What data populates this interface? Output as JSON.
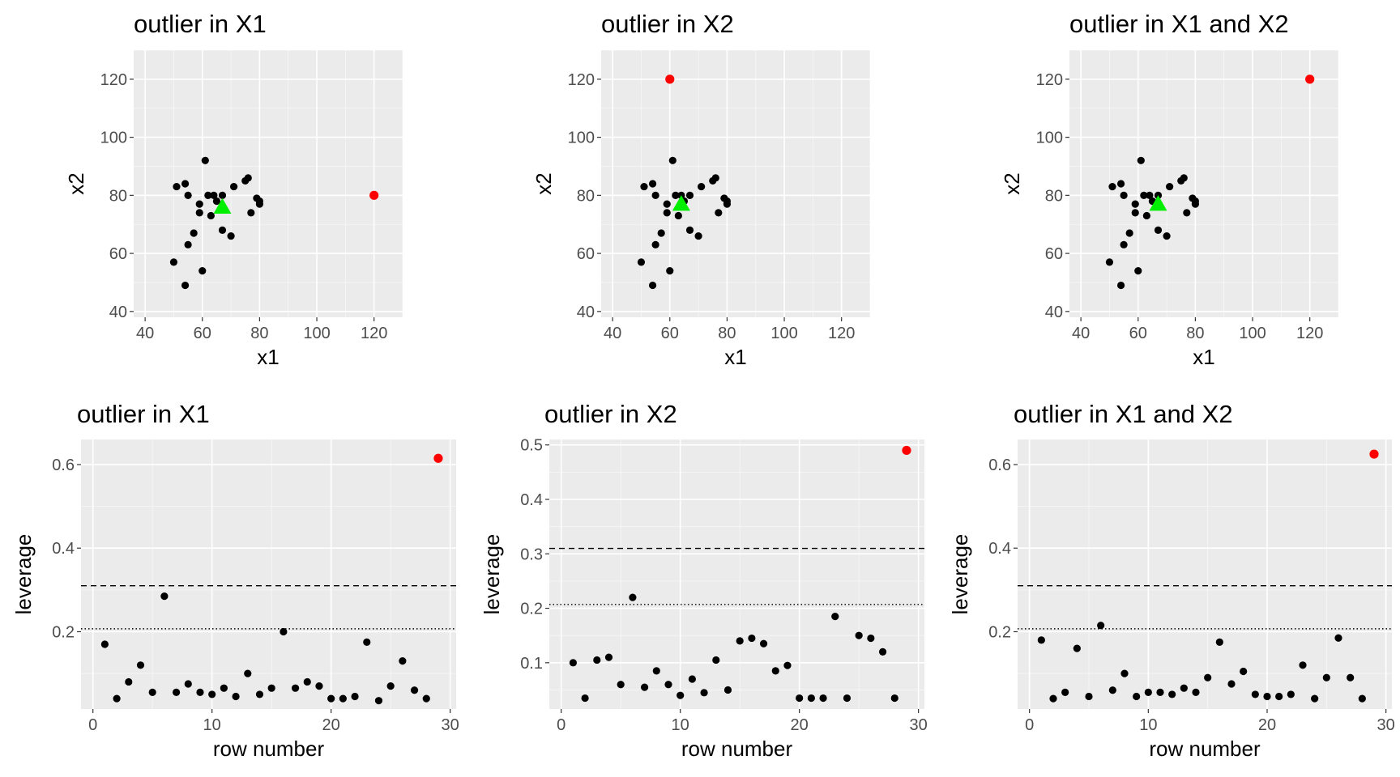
{
  "colors": {
    "panel_bg": "#ebebeb",
    "grid_major": "#ffffff",
    "point": "#000000",
    "outlier": "#ff0000",
    "centroid": "#00ee00",
    "reference_line": "#000000"
  },
  "chart_data": [
    {
      "type": "scatter",
      "title": "outlier in X1",
      "xlabel": "x1",
      "ylabel": "x2",
      "xlim": [
        36,
        130
      ],
      "ylim": [
        38,
        130
      ],
      "xticks": [
        40,
        60,
        80,
        100,
        120
      ],
      "yticks": [
        40,
        60,
        80,
        100,
        120
      ],
      "grid": true,
      "points": [
        [
          50,
          57
        ],
        [
          51,
          83
        ],
        [
          54,
          84
        ],
        [
          54,
          49
        ],
        [
          55,
          80
        ],
        [
          55,
          63
        ],
        [
          57,
          67
        ],
        [
          59,
          74
        ],
        [
          59,
          77
        ],
        [
          60,
          54
        ],
        [
          61,
          92
        ],
        [
          62,
          80
        ],
        [
          63,
          73
        ],
        [
          64,
          80
        ],
        [
          65,
          78
        ],
        [
          67,
          68
        ],
        [
          67,
          80
        ],
        [
          70,
          66
        ],
        [
          71,
          83
        ],
        [
          75,
          85
        ],
        [
          76,
          86
        ],
        [
          77,
          74
        ],
        [
          79,
          79
        ],
        [
          80,
          78
        ],
        [
          80,
          77
        ]
      ],
      "outliers": [
        [
          120,
          80
        ]
      ],
      "centroid": [
        67,
        76
      ]
    },
    {
      "type": "scatter",
      "title": "outlier in X2",
      "xlabel": "x1",
      "ylabel": "x2",
      "xlim": [
        36,
        130
      ],
      "ylim": [
        38,
        130
      ],
      "xticks": [
        40,
        60,
        80,
        100,
        120
      ],
      "yticks": [
        40,
        60,
        80,
        100,
        120
      ],
      "grid": true,
      "points": [
        [
          50,
          57
        ],
        [
          51,
          83
        ],
        [
          54,
          84
        ],
        [
          54,
          49
        ],
        [
          55,
          80
        ],
        [
          55,
          63
        ],
        [
          57,
          67
        ],
        [
          59,
          74
        ],
        [
          59,
          77
        ],
        [
          60,
          54
        ],
        [
          61,
          92
        ],
        [
          62,
          80
        ],
        [
          63,
          73
        ],
        [
          64,
          80
        ],
        [
          65,
          78
        ],
        [
          67,
          68
        ],
        [
          67,
          80
        ],
        [
          70,
          66
        ],
        [
          71,
          83
        ],
        [
          75,
          85
        ],
        [
          76,
          86
        ],
        [
          77,
          74
        ],
        [
          79,
          79
        ],
        [
          80,
          78
        ],
        [
          80,
          77
        ]
      ],
      "outliers": [
        [
          60,
          120
        ]
      ],
      "centroid": [
        64,
        77
      ]
    },
    {
      "type": "scatter",
      "title": "outlier in X1 and X2",
      "xlabel": "x1",
      "ylabel": "x2",
      "xlim": [
        36,
        130
      ],
      "ylim": [
        38,
        130
      ],
      "xticks": [
        40,
        60,
        80,
        100,
        120
      ],
      "yticks": [
        40,
        60,
        80,
        100,
        120
      ],
      "grid": true,
      "points": [
        [
          50,
          57
        ],
        [
          51,
          83
        ],
        [
          54,
          84
        ],
        [
          54,
          49
        ],
        [
          55,
          80
        ],
        [
          55,
          63
        ],
        [
          57,
          67
        ],
        [
          59,
          74
        ],
        [
          59,
          77
        ],
        [
          60,
          54
        ],
        [
          61,
          92
        ],
        [
          62,
          80
        ],
        [
          63,
          73
        ],
        [
          64,
          80
        ],
        [
          65,
          78
        ],
        [
          67,
          68
        ],
        [
          67,
          80
        ],
        [
          70,
          66
        ],
        [
          71,
          83
        ],
        [
          75,
          85
        ],
        [
          76,
          86
        ],
        [
          77,
          74
        ],
        [
          79,
          79
        ],
        [
          80,
          78
        ],
        [
          80,
          77
        ]
      ],
      "outliers": [
        [
          120,
          120
        ]
      ],
      "centroid": [
        67,
        77
      ]
    },
    {
      "type": "scatter",
      "title": "outlier in X1",
      "xlabel": "row number",
      "ylabel": "leverage",
      "xlim": [
        -1,
        30.5
      ],
      "ylim": [
        0.015,
        0.66
      ],
      "xticks": [
        0,
        10,
        20,
        30
      ],
      "yticks": [
        0.2,
        0.4,
        0.6
      ],
      "grid": true,
      "dashed_line": 0.31,
      "dotted_line": 0.207,
      "points": [
        [
          1,
          0.17
        ],
        [
          2,
          0.04
        ],
        [
          3,
          0.08
        ],
        [
          4,
          0.12
        ],
        [
          5,
          0.055
        ],
        [
          6,
          0.285
        ],
        [
          7,
          0.055
        ],
        [
          8,
          0.075
        ],
        [
          9,
          0.055
        ],
        [
          10,
          0.05
        ],
        [
          11,
          0.065
        ],
        [
          12,
          0.045
        ],
        [
          13,
          0.1
        ],
        [
          14,
          0.05
        ],
        [
          15,
          0.065
        ],
        [
          16,
          0.2
        ],
        [
          17,
          0.065
        ],
        [
          18,
          0.08
        ],
        [
          19,
          0.07
        ],
        [
          20,
          0.04
        ],
        [
          21,
          0.04
        ],
        [
          22,
          0.045
        ],
        [
          23,
          0.175
        ],
        [
          24,
          0.035
        ],
        [
          25,
          0.07
        ],
        [
          26,
          0.13
        ],
        [
          27,
          0.06
        ],
        [
          28,
          0.04
        ]
      ],
      "outliers": [
        [
          29,
          0.615
        ]
      ]
    },
    {
      "type": "scatter",
      "title": "outlier in X2",
      "xlabel": "row number",
      "ylabel": "leverage",
      "xlim": [
        -1,
        30.5
      ],
      "ylim": [
        0.015,
        0.51
      ],
      "xticks": [
        0,
        10,
        20,
        30
      ],
      "yticks": [
        0.1,
        0.2,
        0.3,
        0.4,
        0.5
      ],
      "grid": true,
      "dashed_line": 0.31,
      "dotted_line": 0.207,
      "points": [
        [
          1,
          0.1
        ],
        [
          2,
          0.035
        ],
        [
          3,
          0.105
        ],
        [
          4,
          0.11
        ],
        [
          5,
          0.06
        ],
        [
          6,
          0.22
        ],
        [
          7,
          0.055
        ],
        [
          8,
          0.085
        ],
        [
          9,
          0.06
        ],
        [
          10,
          0.04
        ],
        [
          11,
          0.07
        ],
        [
          12,
          0.045
        ],
        [
          13,
          0.105
        ],
        [
          14,
          0.05
        ],
        [
          15,
          0.14
        ],
        [
          16,
          0.145
        ],
        [
          17,
          0.135
        ],
        [
          18,
          0.085
        ],
        [
          19,
          0.095
        ],
        [
          20,
          0.035
        ],
        [
          21,
          0.035
        ],
        [
          22,
          0.035
        ],
        [
          23,
          0.185
        ],
        [
          24,
          0.035
        ],
        [
          25,
          0.15
        ],
        [
          26,
          0.145
        ],
        [
          27,
          0.12
        ],
        [
          28,
          0.035
        ]
      ],
      "outliers": [
        [
          29,
          0.49
        ]
      ]
    },
    {
      "type": "scatter",
      "title": "outlier in X1 and X2",
      "xlabel": "row number",
      "ylabel": "leverage",
      "xlim": [
        -1,
        30.5
      ],
      "ylim": [
        0.015,
        0.66
      ],
      "xticks": [
        0,
        10,
        20,
        30
      ],
      "yticks": [
        0.2,
        0.4,
        0.6
      ],
      "grid": true,
      "dashed_line": 0.31,
      "dotted_line": 0.207,
      "points": [
        [
          1,
          0.18
        ],
        [
          2,
          0.04
        ],
        [
          3,
          0.055
        ],
        [
          4,
          0.16
        ],
        [
          5,
          0.045
        ],
        [
          6,
          0.215
        ],
        [
          7,
          0.06
        ],
        [
          8,
          0.1
        ],
        [
          9,
          0.045
        ],
        [
          10,
          0.055
        ],
        [
          11,
          0.055
        ],
        [
          12,
          0.05
        ],
        [
          13,
          0.065
        ],
        [
          14,
          0.055
        ],
        [
          15,
          0.09
        ],
        [
          16,
          0.175
        ],
        [
          17,
          0.075
        ],
        [
          18,
          0.105
        ],
        [
          19,
          0.05
        ],
        [
          20,
          0.045
        ],
        [
          21,
          0.045
        ],
        [
          22,
          0.05
        ],
        [
          23,
          0.12
        ],
        [
          24,
          0.04
        ],
        [
          25,
          0.09
        ],
        [
          26,
          0.185
        ],
        [
          27,
          0.09
        ],
        [
          28,
          0.04
        ]
      ],
      "outliers": [
        [
          29,
          0.625
        ]
      ]
    }
  ]
}
